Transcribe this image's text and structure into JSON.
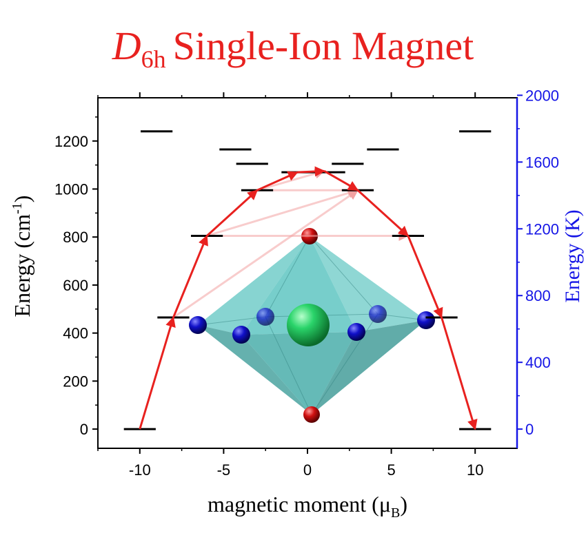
{
  "title": {
    "italic_letter": "D",
    "subscript": "6h",
    "rest": "Single-Ion Magnet",
    "color": "#e8211f"
  },
  "chart_data": {
    "type": "scatter",
    "x_axis": {
      "label": "magnetic moment (μ",
      "label_sub": "B",
      "label_close": ")",
      "range": [
        -12.5,
        12.5
      ],
      "ticks": [
        -10,
        -5,
        0,
        5,
        10
      ],
      "tick_labels": [
        "-10",
        "-5",
        "0",
        "5",
        "10"
      ]
    },
    "y_axis_left": {
      "label": "Energy (cm",
      "label_sup": "-1",
      "label_close": ")",
      "range": [
        -80,
        1380
      ],
      "ticks": [
        0,
        200,
        400,
        600,
        800,
        1000,
        1200
      ],
      "tick_labels": [
        "0",
        "200",
        "400",
        "600",
        "800",
        "1000",
        "1200"
      ]
    },
    "y_axis_right": {
      "label": "Energy (K)",
      "color": "#1515e6",
      "range": [
        -115,
        1985
      ],
      "ticks": [
        0,
        400,
        800,
        1200,
        1600,
        2000
      ],
      "tick_labels": [
        "0",
        "400",
        "800",
        "1200",
        "1600",
        "2000"
      ]
    },
    "energy_levels": [
      {
        "mj": -10,
        "energy": 0
      },
      {
        "mj": 10,
        "energy": 0
      },
      {
        "mj": -8,
        "energy": 465
      },
      {
        "mj": 8,
        "energy": 465
      },
      {
        "mj": -6,
        "energy": 805
      },
      {
        "mj": 6,
        "energy": 805
      },
      {
        "mj": -3,
        "energy": 995
      },
      {
        "mj": 3,
        "energy": 995
      },
      {
        "mj": -9,
        "energy": 1240
      },
      {
        "mj": 10,
        "energy": 1240
      },
      {
        "mj": -4.3,
        "energy": 1165
      },
      {
        "mj": 4.5,
        "energy": 1165
      },
      {
        "mj": -3.3,
        "energy": 1105
      },
      {
        "mj": 2.4,
        "energy": 1105
      },
      {
        "mj": -0.6,
        "energy": 1070
      },
      {
        "mj": 1.3,
        "energy": 1070
      }
    ],
    "level_half_width": 0.95,
    "relaxation_path": {
      "color": "#e8211f",
      "points": [
        {
          "x": -10,
          "y": 0
        },
        {
          "x": -8,
          "y": 465
        },
        {
          "x": -6,
          "y": 805
        },
        {
          "x": -3,
          "y": 995
        },
        {
          "x": -0.6,
          "y": 1070
        },
        {
          "x": 1,
          "y": 1075
        },
        {
          "x": 3,
          "y": 995
        },
        {
          "x": 6,
          "y": 805
        },
        {
          "x": 8,
          "y": 465
        },
        {
          "x": 10,
          "y": 0
        }
      ]
    },
    "faded_transitions": [
      {
        "from": {
          "x": -8,
          "y": 465
        },
        "to": {
          "x": 3,
          "y": 995
        }
      },
      {
        "from": {
          "x": -6,
          "y": 805
        },
        "to": {
          "x": 3,
          "y": 995
        }
      },
      {
        "from": {
          "x": -3,
          "y": 995
        },
        "to": {
          "x": 3,
          "y": 995
        }
      },
      {
        "from": {
          "x": -3,
          "y": 995
        },
        "to": {
          "x": 1,
          "y": 1075
        }
      },
      {
        "from": {
          "x": -6,
          "y": 805
        },
        "to": {
          "x": 6,
          "y": 805
        }
      }
    ],
    "colors": {
      "octahedron": "#5fc6c2",
      "central_atom": "#2ad46a",
      "axial_atoms": "#d01010",
      "equatorial_atoms": "#1010c8",
      "right_axis": "#1515e6"
    }
  }
}
